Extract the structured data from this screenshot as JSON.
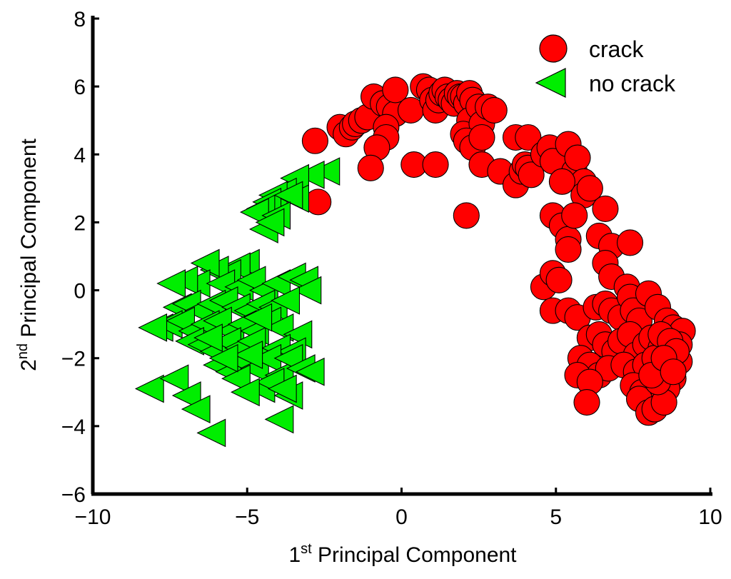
{
  "chart_data": {
    "type": "scatter",
    "xlabel": {
      "base": "1",
      "sup": "st",
      "rest": " Principal Component"
    },
    "ylabel": {
      "base": "2",
      "sup": "nd",
      "rest": " Principal Component"
    },
    "xlim": [
      -10,
      10
    ],
    "ylim": [
      -6,
      8
    ],
    "xticks": [
      -10,
      -5,
      0,
      5,
      10
    ],
    "xtick_labels": [
      "−10",
      "−5",
      "0",
      "5",
      "10"
    ],
    "yticks": [
      -6,
      -4,
      -2,
      0,
      2,
      4,
      6,
      8
    ],
    "ytick_labels": [
      "−6",
      "−4",
      "−2",
      "0",
      "2",
      "4",
      "6",
      "8"
    ],
    "grid": false,
    "legend_position": "top-right",
    "series": [
      {
        "name": "crack",
        "marker": "circle",
        "color": "#ff0000",
        "edge_color": "#000000",
        "points": [
          [
            -2.7,
            2.6
          ],
          [
            -2.8,
            4.4
          ],
          [
            -2.0,
            4.8
          ],
          [
            -1.8,
            4.6
          ],
          [
            -1.6,
            4.8
          ],
          [
            -1.5,
            4.9
          ],
          [
            -1.3,
            5.0
          ],
          [
            -1.1,
            5.1
          ],
          [
            -0.9,
            5.7
          ],
          [
            -0.6,
            5.5
          ],
          [
            -0.4,
            5.4
          ],
          [
            -0.2,
            5.2
          ],
          [
            -0.5,
            4.8
          ],
          [
            -0.5,
            4.5
          ],
          [
            -0.8,
            4.2
          ],
          [
            -1.0,
            3.6
          ],
          [
            -0.2,
            5.9
          ],
          [
            0.3,
            5.3
          ],
          [
            0.7,
            6.0
          ],
          [
            0.9,
            5.9
          ],
          [
            1.0,
            5.6
          ],
          [
            1.1,
            5.3
          ],
          [
            1.2,
            5.6
          ],
          [
            1.3,
            5.8
          ],
          [
            1.4,
            5.9
          ],
          [
            1.5,
            5.7
          ],
          [
            1.6,
            5.6
          ],
          [
            1.7,
            5.5
          ],
          [
            1.8,
            5.8
          ],
          [
            1.9,
            5.7
          ],
          [
            2.0,
            5.7
          ],
          [
            2.1,
            5.5
          ],
          [
            2.2,
            5.8
          ],
          [
            2.3,
            5.6
          ],
          [
            2.2,
            5.0
          ],
          [
            2.0,
            4.6
          ],
          [
            2.5,
            5.4
          ],
          [
            2.6,
            4.9
          ],
          [
            2.8,
            5.4
          ],
          [
            3.0,
            5.3
          ],
          [
            2.1,
            4.4
          ],
          [
            2.3,
            4.2
          ],
          [
            2.6,
            4.5
          ],
          [
            0.4,
            3.7
          ],
          [
            1.1,
            3.7
          ],
          [
            2.1,
            2.2
          ],
          [
            2.6,
            3.7
          ],
          [
            3.2,
            3.5
          ],
          [
            3.7,
            3.1
          ],
          [
            3.9,
            3.5
          ],
          [
            4.0,
            3.7
          ],
          [
            4.1,
            3.6
          ],
          [
            4.2,
            3.4
          ],
          [
            3.7,
            4.5
          ],
          [
            4.1,
            4.5
          ],
          [
            4.6,
            4.0
          ],
          [
            4.8,
            4.2
          ],
          [
            4.9,
            3.8
          ],
          [
            5.4,
            4.3
          ],
          [
            5.6,
            3.5
          ],
          [
            5.7,
            3.9
          ],
          [
            5.9,
            3.2
          ],
          [
            5.9,
            2.8
          ],
          [
            6.1,
            3.0
          ],
          [
            5.2,
            3.2
          ],
          [
            4.9,
            2.2
          ],
          [
            5.2,
            1.9
          ],
          [
            5.4,
            1.5
          ],
          [
            5.4,
            1.2
          ],
          [
            5.6,
            2.2
          ],
          [
            6.4,
            1.6
          ],
          [
            6.6,
            2.4
          ],
          [
            6.8,
            1.3
          ],
          [
            7.4,
            1.4
          ],
          [
            6.6,
            0.8
          ],
          [
            6.8,
            0.4
          ],
          [
            7.3,
            0.1
          ],
          [
            4.6,
            0.1
          ],
          [
            4.9,
            0.5
          ],
          [
            5.1,
            0.3
          ],
          [
            4.9,
            -0.6
          ],
          [
            5.4,
            -0.6
          ],
          [
            5.7,
            -0.8
          ],
          [
            6.3,
            -0.5
          ],
          [
            6.6,
            -0.4
          ],
          [
            6.8,
            -0.6
          ],
          [
            7.1,
            -0.8
          ],
          [
            7.4,
            -0.2
          ],
          [
            7.5,
            -0.6
          ],
          [
            7.7,
            -0.9
          ],
          [
            8.0,
            -0.1
          ],
          [
            8.3,
            -0.5
          ],
          [
            8.6,
            -0.9
          ],
          [
            8.8,
            -1.1
          ],
          [
            9.1,
            -1.2
          ],
          [
            6.1,
            -1.4
          ],
          [
            6.4,
            -1.3
          ],
          [
            6.6,
            -1.6
          ],
          [
            6.9,
            -1.8
          ],
          [
            7.1,
            -1.5
          ],
          [
            7.4,
            -1.3
          ],
          [
            7.6,
            -1.9
          ],
          [
            7.9,
            -1.6
          ],
          [
            8.1,
            -1.4
          ],
          [
            8.4,
            -1.7
          ],
          [
            8.7,
            -1.9
          ],
          [
            9.0,
            -1.6
          ],
          [
            5.8,
            -2.0
          ],
          [
            6.1,
            -2.2
          ],
          [
            6.4,
            -2.5
          ],
          [
            6.7,
            -2.3
          ],
          [
            7.2,
            -2.2
          ],
          [
            7.6,
            -2.4
          ],
          [
            7.9,
            -2.2
          ],
          [
            8.2,
            -2.0
          ],
          [
            8.5,
            -2.3
          ],
          [
            8.8,
            -2.6
          ],
          [
            9.0,
            -2.1
          ],
          [
            5.7,
            -2.5
          ],
          [
            6.1,
            -2.7
          ],
          [
            7.5,
            -2.8
          ],
          [
            7.8,
            -3.0
          ],
          [
            8.0,
            -3.3
          ],
          [
            8.3,
            -3.1
          ],
          [
            8.6,
            -2.9
          ],
          [
            7.7,
            -3.2
          ],
          [
            8.0,
            -3.6
          ],
          [
            8.2,
            -3.5
          ],
          [
            8.5,
            -3.3
          ],
          [
            6.0,
            -3.3
          ],
          [
            8.3,
            -2.7
          ],
          [
            8.6,
            -2.2
          ],
          [
            8.4,
            -1.3
          ],
          [
            8.7,
            -1.5
          ],
          [
            8.9,
            -1.8
          ],
          [
            8.1,
            -2.5
          ],
          [
            8.5,
            -2.0
          ],
          [
            8.8,
            -2.4
          ]
        ]
      },
      {
        "name": "no crack",
        "marker": "triangle-left",
        "color": "#00ee00",
        "edge_color": "#000000",
        "points": [
          [
            -2.4,
            3.5
          ],
          [
            -2.9,
            3.4
          ],
          [
            -3.4,
            3.3
          ],
          [
            -3.8,
            2.9
          ],
          [
            -4.1,
            2.8
          ],
          [
            -4.3,
            2.6
          ],
          [
            -4.5,
            2.4
          ],
          [
            -4.7,
            2.3
          ],
          [
            -3.4,
            2.7
          ],
          [
            -3.6,
            2.8
          ],
          [
            -4.0,
            2.2
          ],
          [
            -4.4,
            1.8
          ],
          [
            -4.2,
            2.0
          ],
          [
            -5.0,
            0.8
          ],
          [
            -5.3,
            0.7
          ],
          [
            -5.6,
            0.5
          ],
          [
            -6.0,
            0.6
          ],
          [
            -6.3,
            0.8
          ],
          [
            -6.6,
            0.2
          ],
          [
            -7.0,
            0.3
          ],
          [
            -7.4,
            0.2
          ],
          [
            -5.8,
            0.2
          ],
          [
            -5.2,
            0.1
          ],
          [
            -4.8,
            0.3
          ],
          [
            -4.4,
            0.0
          ],
          [
            -4.0,
            0.2
          ],
          [
            -3.5,
            0.4
          ],
          [
            -3.1,
            0.3
          ],
          [
            -3.0,
            0.0
          ],
          [
            -7.2,
            -0.5
          ],
          [
            -6.9,
            -0.4
          ],
          [
            -6.5,
            -0.6
          ],
          [
            -6.1,
            -0.4
          ],
          [
            -5.7,
            -0.3
          ],
          [
            -5.3,
            -0.5
          ],
          [
            -4.9,
            -0.6
          ],
          [
            -4.5,
            -0.4
          ],
          [
            -4.1,
            -0.5
          ],
          [
            -3.7,
            -0.3
          ],
          [
            -7.8,
            -1.1
          ],
          [
            -7.5,
            -1.0
          ],
          [
            -7.1,
            -0.9
          ],
          [
            -6.7,
            -1.2
          ],
          [
            -6.3,
            -1.0
          ],
          [
            -5.9,
            -0.9
          ],
          [
            -5.5,
            -1.2
          ],
          [
            -5.1,
            -1.0
          ],
          [
            -4.7,
            -1.2
          ],
          [
            -4.3,
            -0.9
          ],
          [
            -3.9,
            -1.1
          ],
          [
            -3.3,
            -1.3
          ],
          [
            -8.0,
            -1.1
          ],
          [
            -6.8,
            -1.5
          ],
          [
            -6.4,
            -1.6
          ],
          [
            -6.0,
            -1.8
          ],
          [
            -5.6,
            -1.5
          ],
          [
            -5.2,
            -1.7
          ],
          [
            -4.8,
            -1.5
          ],
          [
            -4.4,
            -1.9
          ],
          [
            -4.0,
            -1.7
          ],
          [
            -3.5,
            -1.8
          ],
          [
            -5.9,
            -2.2
          ],
          [
            -5.5,
            -2.4
          ],
          [
            -5.1,
            -2.1
          ],
          [
            -4.7,
            -2.3
          ],
          [
            -4.3,
            -2.0
          ],
          [
            -3.9,
            -2.5
          ],
          [
            -3.6,
            -2.0
          ],
          [
            -3.2,
            -2.3
          ],
          [
            -2.9,
            -2.4
          ],
          [
            -5.3,
            -2.6
          ],
          [
            -4.5,
            -2.9
          ],
          [
            -4.2,
            -2.7
          ],
          [
            -8.1,
            -2.9
          ],
          [
            -7.3,
            -2.6
          ],
          [
            -6.9,
            -3.1
          ],
          [
            -6.6,
            -3.5
          ],
          [
            -6.1,
            -4.2
          ],
          [
            -3.9,
            -3.8
          ],
          [
            -3.6,
            -3.1
          ],
          [
            -4.9,
            -1.9
          ],
          [
            -5.7,
            -2.0
          ],
          [
            -6.2,
            -1.4
          ],
          [
            -4.6,
            -0.8
          ],
          [
            -3.8,
            -2.9
          ],
          [
            -5.0,
            -3.0
          ]
        ]
      }
    ]
  }
}
